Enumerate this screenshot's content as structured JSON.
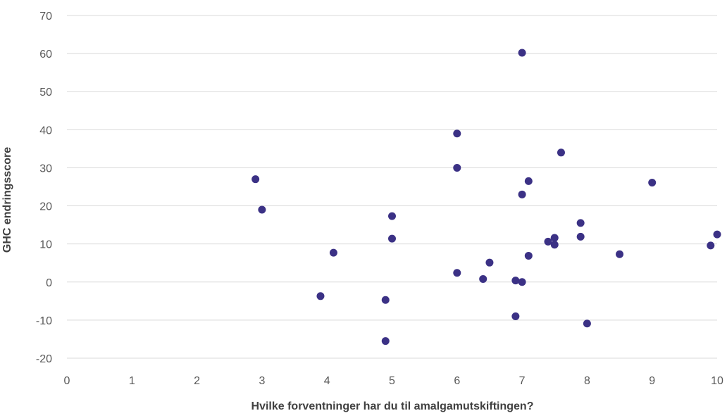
{
  "chart_data": {
    "type": "scatter",
    "title": "",
    "xlabel": "Hvilke forventninger har du til amalgamutskiftingen?",
    "ylabel": "GHC endringsscore",
    "xlim": [
      0,
      10
    ],
    "ylim": [
      -20,
      70
    ],
    "x_ticks": [
      "0",
      "1",
      "2",
      "3",
      "4",
      "5",
      "6",
      "7",
      "8",
      "9",
      "10"
    ],
    "y_ticks": [
      "70",
      "60",
      "50",
      "40",
      "30",
      "20",
      "10",
      "0",
      "-10",
      "-20"
    ],
    "grid": true,
    "legend": "none",
    "marker_color": "#3b3185",
    "points": [
      {
        "x": 2.9,
        "y": 27
      },
      {
        "x": 3.0,
        "y": 19
      },
      {
        "x": 3.9,
        "y": -3.7
      },
      {
        "x": 4.1,
        "y": 7.7
      },
      {
        "x": 4.9,
        "y": -4.7
      },
      {
        "x": 4.9,
        "y": -15.5
      },
      {
        "x": 5.0,
        "y": 17.3
      },
      {
        "x": 5.0,
        "y": 11.4
      },
      {
        "x": 6.0,
        "y": 39
      },
      {
        "x": 6.0,
        "y": 30
      },
      {
        "x": 6.0,
        "y": 2.4
      },
      {
        "x": 6.4,
        "y": 0.8
      },
      {
        "x": 6.5,
        "y": 5.1
      },
      {
        "x": 6.9,
        "y": 0.4
      },
      {
        "x": 6.9,
        "y": -9
      },
      {
        "x": 7.0,
        "y": 60.2
      },
      {
        "x": 7.0,
        "y": 23
      },
      {
        "x": 7.0,
        "y": 0.0
      },
      {
        "x": 7.1,
        "y": 26.5
      },
      {
        "x": 7.1,
        "y": 6.9
      },
      {
        "x": 7.4,
        "y": 10.6
      },
      {
        "x": 7.5,
        "y": 11.6
      },
      {
        "x": 7.5,
        "y": 9.8
      },
      {
        "x": 7.6,
        "y": 34
      },
      {
        "x": 7.9,
        "y": 15.5
      },
      {
        "x": 7.9,
        "y": 11.9
      },
      {
        "x": 8.0,
        "y": -10.9
      },
      {
        "x": 8.5,
        "y": 7.3
      },
      {
        "x": 9.0,
        "y": 26.1
      },
      {
        "x": 9.9,
        "y": 9.6
      },
      {
        "x": 10.0,
        "y": 12.5
      }
    ]
  }
}
